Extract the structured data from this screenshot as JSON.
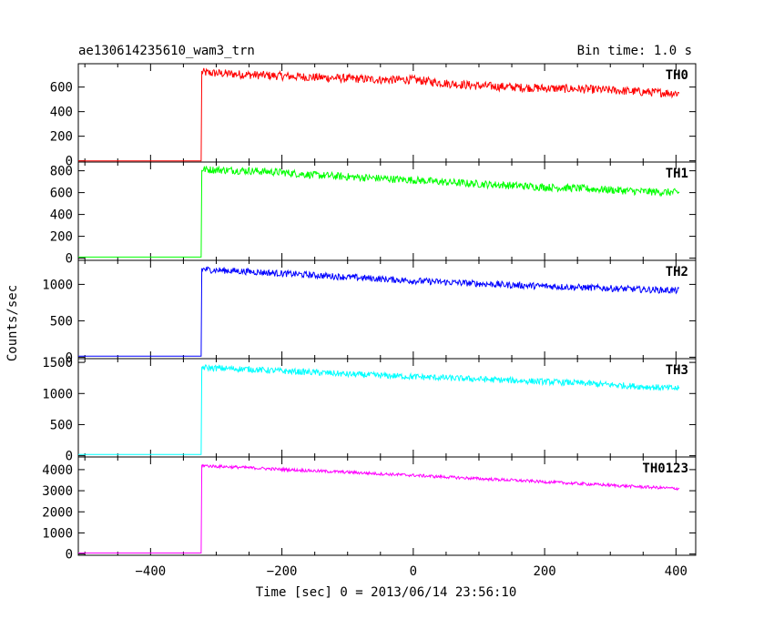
{
  "header": {
    "title": "ae130614235610_wam3_trn",
    "bin_time": "Bin time: 1.0 s"
  },
  "chart_data": {
    "type": "line",
    "ylabel": "Counts/sec",
    "xlabel": "Time [sec] 0 = 2013/06/14 23:56:10",
    "xlim": [
      -510,
      430
    ],
    "x_ticks": [
      -400,
      -200,
      0,
      200,
      400
    ],
    "x_tick_labels": [
      "−400",
      "−200",
      "0",
      "200",
      "400"
    ],
    "panels": [
      {
        "name": "TH0",
        "color": "#ff0000",
        "ylim": [
          -10,
          790
        ],
        "y_ticks": [
          0,
          200,
          400,
          600
        ],
        "y_tick_labels": [
          "0",
          "200",
          "400",
          "600"
        ],
        "x": [
          -510,
          -323,
          -322,
          -310,
          -250,
          -200,
          -150,
          -100,
          -50,
          0,
          50,
          100,
          150,
          200,
          250,
          300,
          350,
          405
        ],
        "y": [
          0,
          0,
          720,
          715,
          700,
          690,
          680,
          670,
          660,
          660,
          630,
          610,
          600,
          590,
          585,
          575,
          560,
          550
        ],
        "noise": 35
      },
      {
        "name": "TH1",
        "color": "#00ff00",
        "ylim": [
          -20,
          880
        ],
        "y_ticks": [
          0,
          200,
          400,
          600,
          800
        ],
        "y_tick_labels": [
          "0",
          "200",
          "400",
          "600",
          "800"
        ],
        "x": [
          -510,
          -323,
          -322,
          -310,
          -250,
          -200,
          -150,
          -100,
          -50,
          0,
          50,
          100,
          150,
          200,
          250,
          300,
          350,
          405
        ],
        "y": [
          10,
          10,
          815,
          810,
          800,
          785,
          760,
          745,
          730,
          715,
          695,
          680,
          665,
          650,
          640,
          625,
          610,
          600
        ],
        "noise": 35
      },
      {
        "name": "TH2",
        "color": "#0000ff",
        "ylim": [
          -20,
          1330
        ],
        "y_ticks": [
          0,
          500,
          1000
        ],
        "y_tick_labels": [
          "0",
          "500",
          "1000"
        ],
        "x": [
          -510,
          -323,
          -322,
          -310,
          -250,
          -200,
          -150,
          -100,
          -50,
          0,
          50,
          100,
          150,
          200,
          250,
          300,
          350,
          405
        ],
        "y": [
          15,
          15,
          1210,
          1200,
          1175,
          1150,
          1125,
          1100,
          1075,
          1050,
          1030,
          1010,
          990,
          975,
          960,
          945,
          930,
          915
        ],
        "noise": 45
      },
      {
        "name": "TH3",
        "color": "#00ffff",
        "ylim": [
          -20,
          1560
        ],
        "y_ticks": [
          0,
          500,
          1000,
          1500
        ],
        "y_tick_labels": [
          "0",
          "500",
          "1000",
          "1500"
        ],
        "x": [
          -510,
          -323,
          -322,
          -310,
          -250,
          -200,
          -150,
          -100,
          -50,
          0,
          50,
          100,
          150,
          200,
          250,
          300,
          350,
          405
        ],
        "y": [
          20,
          20,
          1420,
          1410,
          1390,
          1360,
          1340,
          1310,
          1290,
          1270,
          1250,
          1230,
          1210,
          1190,
          1170,
          1140,
          1110,
          1080
        ],
        "noise": 50
      },
      {
        "name": "TH0123",
        "color": "#ff00ff",
        "ylim": [
          -60,
          4600
        ],
        "y_ticks": [
          0,
          1000,
          2000,
          3000,
          4000
        ],
        "y_tick_labels": [
          "0",
          "1000",
          "2000",
          "3000",
          "4000"
        ],
        "x": [
          -510,
          -323,
          -322,
          -310,
          -250,
          -200,
          -150,
          -100,
          -50,
          0,
          50,
          100,
          150,
          200,
          250,
          300,
          350,
          405
        ],
        "y": [
          50,
          50,
          4200,
          4170,
          4090,
          4010,
          3940,
          3880,
          3800,
          3730,
          3650,
          3570,
          3500,
          3420,
          3340,
          3260,
          3180,
          3100
        ],
        "noise": 70
      }
    ]
  }
}
